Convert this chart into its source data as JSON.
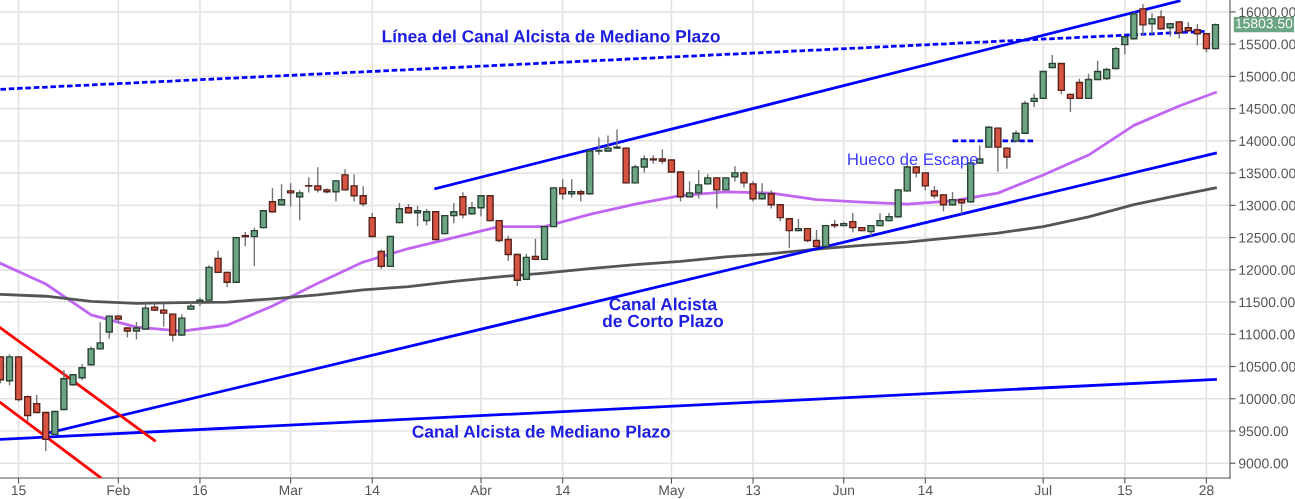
{
  "chart_data": {
    "type": "candlestick",
    "categories": [
      null,
      null,
      "15",
      null,
      null,
      null,
      null,
      null,
      null,
      null,
      null,
      null,
      null,
      "Feb",
      null,
      null,
      null,
      null,
      null,
      null,
      null,
      null,
      "16",
      null,
      null,
      null,
      null,
      null,
      null,
      null,
      null,
      null,
      "Mar",
      null,
      null,
      null,
      null,
      null,
      null,
      null,
      null,
      "14",
      null,
      null,
      null,
      null,
      null,
      null,
      null,
      null,
      null,
      null,
      null,
      "Abr",
      null,
      null,
      null,
      null,
      null,
      null,
      null,
      null,
      "14",
      null,
      null,
      null,
      null,
      null,
      null,
      null,
      null,
      null,
      null,
      null,
      "May",
      null,
      null,
      null,
      null,
      null,
      null,
      null,
      null,
      "13",
      null,
      null,
      null,
      null,
      null,
      null,
      null,
      null,
      null,
      "Jun",
      null,
      null,
      null,
      null,
      null,
      null,
      null,
      null,
      "14",
      null,
      null,
      null,
      null,
      null,
      null,
      null,
      null,
      null,
      null,
      null,
      null,
      "Jul",
      null,
      null,
      null,
      null,
      null,
      null,
      null,
      null,
      "15",
      null,
      null,
      null,
      null,
      null,
      null,
      null,
      null,
      "28",
      null
    ],
    "ohlc": [
      [
        10650,
        10650,
        10250,
        10295
      ],
      [
        10280,
        10680,
        10220,
        10650
      ],
      [
        10650,
        10650,
        9970,
        9987
      ],
      [
        10033,
        10040,
        9663,
        9740
      ],
      [
        9925,
        10050,
        9786,
        9786
      ],
      [
        9786,
        9786,
        9200,
        9370
      ],
      [
        9447,
        9802,
        9447,
        9802
      ],
      [
        9833,
        10434,
        9833,
        10311
      ],
      [
        10218,
        10372,
        10218,
        10372
      ],
      [
        10326,
        10530,
        10300,
        10480
      ],
      [
        10527,
        10800,
        10527,
        10773
      ],
      [
        10773,
        11174,
        10773,
        10866
      ],
      [
        11035,
        11282,
        10943,
        11282
      ],
      [
        11282,
        11282,
        11180,
        11236
      ],
      [
        11097,
        11097,
        10960,
        11051
      ],
      [
        11051,
        11180,
        10930,
        11097
      ],
      [
        11082,
        11470,
        11082,
        11406
      ],
      [
        11421,
        11470,
        11375,
        11375
      ],
      [
        11375,
        11470,
        11130,
        11328
      ],
      [
        11313,
        11313,
        10900,
        10989
      ],
      [
        10989,
        11300,
        10989,
        11251
      ],
      [
        11390,
        11500,
        11390,
        11436
      ],
      [
        11513,
        11560,
        11450,
        11529
      ],
      [
        11529,
        12060,
        11529,
        12038
      ],
      [
        12177,
        12285,
        11961,
        11961
      ],
      [
        11961,
        11961,
        11745,
        11806
      ],
      [
        11806,
        12500,
        11806,
        12500
      ],
      [
        12530,
        12577,
        12377,
        12515
      ],
      [
        12515,
        12639,
        12069,
        12608
      ],
      [
        12655,
        12917,
        12655,
        12917
      ],
      [
        13055,
        13256,
        12901,
        12901
      ],
      [
        13009,
        13318,
        13009,
        13086
      ],
      [
        13225,
        13333,
        12994,
        13194
      ],
      [
        13133,
        13225,
        12778,
        13194
      ],
      [
        13305,
        13426,
        13210,
        13300
      ],
      [
        13302,
        13580,
        13210,
        13240
      ],
      [
        13240,
        13255,
        13195,
        13210
      ],
      [
        13210,
        13379,
        13071,
        13379
      ],
      [
        13472,
        13549,
        13240,
        13240
      ],
      [
        13302,
        13472,
        13071,
        13148
      ],
      [
        13148,
        13287,
        12994,
        13025
      ],
      [
        12809,
        12870,
        12516,
        12516
      ],
      [
        12285,
        12300,
        12022,
        12053
      ],
      [
        12053,
        12516,
        12053,
        12516
      ],
      [
        12732,
        13025,
        12732,
        12948
      ],
      [
        12963,
        13009,
        12886,
        12886
      ],
      [
        12886,
        12978,
        12685,
        12917
      ],
      [
        12762,
        12932,
        12701,
        12901
      ],
      [
        12901,
        12901,
        12470,
        12470
      ],
      [
        12562,
        12840,
        12562,
        12840
      ],
      [
        12840,
        13025,
        12732,
        12901
      ],
      [
        13133,
        13194,
        12809,
        12855
      ],
      [
        12870,
        13040,
        12870,
        12963
      ],
      [
        12963,
        13148,
        12840,
        13148
      ],
      [
        13148,
        13148,
        12762,
        12762
      ],
      [
        12762,
        12762,
        12440,
        12454
      ],
      [
        12470,
        12516,
        12146,
        12238
      ],
      [
        12238,
        12238,
        11760,
        11837
      ],
      [
        11853,
        12238,
        11853,
        12192
      ],
      [
        12207,
        12470,
        12161,
        12161
      ],
      [
        12161,
        12670,
        12161,
        12670
      ],
      [
        12670,
        13271,
        12670,
        13271
      ],
      [
        13271,
        13395,
        13102,
        13179
      ],
      [
        13179,
        13395,
        13133,
        13210
      ],
      [
        13210,
        13230,
        13071,
        13179
      ],
      [
        13179,
        13860,
        13179,
        13842
      ],
      [
        13842,
        14042,
        13796,
        13850
      ],
      [
        13842,
        14073,
        13842,
        13888
      ],
      [
        13888,
        14166,
        13888,
        13903
      ],
      [
        13888,
        13888,
        13348,
        13348
      ],
      [
        13348,
        13620,
        13348,
        13595
      ],
      [
        13595,
        13765,
        13518,
        13719
      ],
      [
        13719,
        13765,
        13657,
        13705
      ],
      [
        13719,
        13857,
        13657,
        13688
      ],
      [
        13703,
        13703,
        13518,
        13518
      ],
      [
        13518,
        13518,
        13071,
        13133
      ],
      [
        13133,
        13364,
        13133,
        13194
      ],
      [
        13194,
        13533,
        13117,
        13318
      ],
      [
        13333,
        13472,
        13333,
        13426
      ],
      [
        13426,
        13426,
        12963,
        13240
      ],
      [
        13240,
        13426,
        13240,
        13426
      ],
      [
        13441,
        13595,
        13379,
        13503
      ],
      [
        13503,
        13518,
        13287,
        13348
      ],
      [
        13333,
        13364,
        13071,
        13102
      ],
      [
        13102,
        13333,
        13102,
        13179
      ],
      [
        13179,
        13225,
        12963,
        13009
      ],
      [
        13009,
        13009,
        12762,
        12809
      ],
      [
        12793,
        12793,
        12346,
        12608
      ],
      [
        12608,
        12778,
        12608,
        12639
      ],
      [
        12639,
        12639,
        12439,
        12454
      ],
      [
        12454,
        12608,
        12362,
        12362
      ],
      [
        12362,
        12685,
        12362,
        12685
      ],
      [
        12701,
        12762,
        12655,
        12685
      ],
      [
        12685,
        12730,
        12685,
        12716
      ],
      [
        12747,
        12870,
        12593,
        12655
      ],
      [
        12655,
        12655,
        12608,
        12608
      ],
      [
        12593,
        12685,
        12531,
        12685
      ],
      [
        12685,
        12870,
        12685,
        12762
      ],
      [
        12762,
        12870,
        12762,
        12824
      ],
      [
        12824,
        13240,
        12824,
        13240
      ],
      [
        13225,
        13626,
        13225,
        13595
      ],
      [
        13595,
        13595,
        13441,
        13503
      ],
      [
        13503,
        13503,
        13240,
        13302
      ],
      [
        13225,
        13287,
        13117,
        13148
      ],
      [
        13163,
        13163,
        12917,
        13009
      ],
      [
        13009,
        13194,
        13009,
        13086
      ],
      [
        13086,
        13086,
        12870,
        13040
      ],
      [
        13055,
        13657,
        13055,
        13657
      ],
      [
        13657,
        13919,
        13657,
        13719
      ],
      [
        13903,
        14212,
        13903,
        14212
      ],
      [
        14197,
        14197,
        13533,
        13903
      ],
      [
        13888,
        13888,
        13580,
        13749
      ],
      [
        13996,
        14150,
        13996,
        14119
      ],
      [
        14119,
        14613,
        14119,
        14582
      ],
      [
        14613,
        14721,
        14536,
        14659
      ],
      [
        14659,
        15075,
        14659,
        15075
      ],
      [
        15137,
        15322,
        15137,
        15199
      ],
      [
        15199,
        15199,
        14736,
        14783
      ],
      [
        14721,
        14721,
        14459,
        14659
      ],
      [
        14906,
        14952,
        14659,
        14659
      ],
      [
        14659,
        15029,
        14659,
        14952
      ],
      [
        14952,
        15230,
        14952,
        15075
      ],
      [
        14968,
        15120,
        14952,
        15106
      ],
      [
        15122,
        15445,
        15122,
        15430
      ],
      [
        15492,
        15615,
        15353,
        15615
      ],
      [
        15584,
        15985,
        15584,
        15970
      ],
      [
        16047,
        16109,
        15646,
        15800
      ],
      [
        15816,
        15970,
        15661,
        15893
      ],
      [
        15923,
        16016,
        15739,
        15739
      ],
      [
        15754,
        15816,
        15631,
        15816
      ],
      [
        15846,
        15846,
        15600,
        15677
      ],
      [
        15754,
        15831,
        15708,
        15708
      ],
      [
        15723,
        15800,
        15492,
        15661
      ],
      [
        15661,
        15661,
        15384,
        15430
      ],
      [
        15430,
        15810,
        15430,
        15803.5
      ]
    ],
    "colors": [
      "#d75442",
      "#6ba583",
      "#d75442",
      "#d75442",
      "#d75442",
      "#d75442",
      "#6ba583",
      "#6ba583",
      "#6ba583",
      "#6ba583",
      "#6ba583",
      "#6ba583",
      "#6ba583",
      "#d75442",
      "#d75442",
      "#6ba583",
      "#6ba583",
      "#d75442",
      "#d75442",
      "#d75442",
      "#6ba583",
      "#6ba583",
      "#6ba583",
      "#6ba583",
      "#d75442",
      "#d75442",
      "#6ba583",
      "#d75442",
      "#6ba583",
      "#6ba583",
      "#d75442",
      "#6ba583",
      "#d75442",
      "#6ba583",
      "#d75442",
      "#d75442",
      "#d75442",
      "#6ba583",
      "#d75442",
      "#d75442",
      "#d75442",
      "#d75442",
      "#d75442",
      "#6ba583",
      "#6ba583",
      "#d75442",
      "#6ba583",
      "#6ba583",
      "#d75442",
      "#6ba583",
      "#6ba583",
      "#d75442",
      "#6ba583",
      "#6ba583",
      "#d75442",
      "#d75442",
      "#d75442",
      "#d75442",
      "#6ba583",
      "#d75442",
      "#6ba583",
      "#6ba583",
      "#d75442",
      "#6ba583",
      "#d75442",
      "#6ba583",
      "#6ba583",
      "#6ba583",
      "#6ba583",
      "#d75442",
      "#6ba583",
      "#6ba583",
      "#d75442",
      "#d75442",
      "#d75442",
      "#d75442",
      "#6ba583",
      "#6ba583",
      "#6ba583",
      "#d75442",
      "#6ba583",
      "#6ba583",
      "#d75442",
      "#d75442",
      "#6ba583",
      "#d75442",
      "#d75442",
      "#d75442",
      "#6ba583",
      "#d75442",
      "#d75442",
      "#6ba583",
      "#d75442",
      "#6ba583",
      "#d75442",
      "#d75442",
      "#6ba583",
      "#6ba583",
      "#6ba583",
      "#6ba583",
      "#6ba583",
      "#d75442",
      "#d75442",
      "#d75442",
      "#d75442",
      "#6ba583",
      "#d75442",
      "#6ba583",
      "#6ba583",
      "#6ba583",
      "#d75442",
      "#d75442",
      "#6ba583",
      "#6ba583",
      "#6ba583",
      "#6ba583",
      "#6ba583",
      "#d75442",
      "#d75442",
      "#d75442",
      "#6ba583",
      "#6ba583",
      "#6ba583",
      "#6ba583",
      "#6ba583",
      "#6ba583",
      "#d75442",
      "#6ba583",
      "#d75442",
      "#6ba583",
      "#d75442",
      "#d75442",
      "#d75442",
      "#d75442",
      "#6ba583"
    ],
    "series": [
      {
        "type": "line",
        "color": "#c066f2",
        "line_style": "solid",
        "values": [
          12100,
          null,
          null,
          null,
          null,
          11780,
          null,
          null,
          null,
          null,
          11300,
          null,
          null,
          null,
          null,
          11110,
          null,
          null,
          null,
          null,
          11050,
          null,
          null,
          null,
          null,
          11140,
          null,
          null,
          null,
          null,
          11440,
          null,
          null,
          null,
          null,
          11790,
          null,
          null,
          null,
          null,
          12120,
          null,
          null,
          null,
          null,
          12330,
          null,
          null,
          null,
          null,
          12500,
          null,
          null,
          null,
          null,
          12670,
          null,
          null,
          null,
          null,
          12670,
          null,
          null,
          null,
          null,
          12860,
          null,
          null,
          null,
          null,
          13020,
          null,
          null,
          null,
          null,
          13150,
          null,
          null,
          null,
          null,
          13210,
          null,
          null,
          null,
          null,
          13190,
          null,
          null,
          null,
          null,
          13090,
          null,
          null,
          null,
          null,
          13050,
          null,
          null,
          null,
          null,
          13020,
          null,
          null,
          null,
          null,
          13070,
          null,
          null,
          null,
          null,
          13190,
          null,
          null,
          null,
          null,
          13470,
          null,
          null,
          null,
          null,
          13780,
          null,
          null,
          null,
          null,
          14240,
          null,
          null,
          null,
          null,
          14540,
          null,
          null,
          null,
          14750
        ]
      },
      {
        "type": "line",
        "color": "#555555",
        "line_style": "solid",
        "values": [
          11620,
          null,
          null,
          null,
          null,
          11590,
          null,
          null,
          null,
          null,
          11510,
          null,
          null,
          null,
          null,
          11480,
          null,
          null,
          null,
          null,
          11490,
          null,
          null,
          null,
          null,
          11500,
          null,
          null,
          null,
          null,
          11550,
          null,
          null,
          null,
          null,
          11610,
          null,
          null,
          null,
          null,
          11690,
          null,
          null,
          null,
          null,
          11740,
          null,
          null,
          null,
          null,
          11820,
          null,
          null,
          null,
          null,
          11890,
          null,
          null,
          null,
          null,
          11950,
          null,
          null,
          null,
          null,
          12020,
          null,
          null,
          null,
          null,
          12080,
          null,
          null,
          null,
          null,
          12130,
          null,
          null,
          null,
          null,
          12200,
          null,
          null,
          null,
          null,
          12250,
          null,
          null,
          null,
          null,
          12320,
          null,
          null,
          null,
          null,
          12380,
          null,
          null,
          null,
          null,
          12430,
          null,
          null,
          null,
          null,
          12500,
          null,
          null,
          null,
          null,
          12570,
          null,
          null,
          null,
          null,
          12670,
          null,
          null,
          null,
          null,
          12820,
          null,
          null,
          null,
          null,
          13010,
          null,
          null,
          null,
          null,
          13160,
          null,
          null,
          null,
          13270
        ]
      },
      {
        "type": "line",
        "color": "#0000ff",
        "line_style": "dashed",
        "values": [
          14800,
          null,
          null,
          null,
          null,
          null,
          null,
          null,
          null,
          null,
          null,
          null,
          null,
          null,
          null,
          null,
          null,
          null,
          null,
          null,
          null,
          null,
          null,
          null,
          null,
          null,
          null,
          null,
          null,
          null,
          null,
          null,
          null,
          null,
          null,
          null,
          null,
          null,
          null,
          null,
          null,
          null,
          null,
          null,
          null,
          null,
          null,
          null,
          null,
          null,
          null,
          null,
          null,
          null,
          null,
          null,
          null,
          null,
          null,
          null,
          null,
          null,
          null,
          null,
          null,
          null,
          null,
          null,
          null,
          null,
          null,
          null,
          null,
          null,
          null,
          null,
          null,
          null,
          null,
          null,
          null,
          null,
          null,
          null,
          null,
          null,
          null,
          null,
          null,
          null,
          null,
          null,
          null,
          null,
          null,
          null,
          null,
          null,
          null,
          null,
          null,
          null,
          null,
          null,
          null,
          null,
          null,
          null,
          null,
          null,
          null,
          null,
          null,
          null,
          null,
          null,
          null,
          null,
          null,
          null,
          null,
          null,
          null,
          null,
          null,
          null,
          null,
          null,
          null,
          null,
          null,
          null,
          null,
          15700,
          null
        ]
      },
      {
        "type": "line",
        "color": "#0000ff",
        "line_style": "solid",
        "values": [
          null,
          null,
          null,
          null,
          null,
          9460,
          null,
          null,
          null,
          null,
          null,
          null,
          null,
          null,
          null,
          null,
          null,
          null,
          null,
          null,
          null,
          null,
          null,
          null,
          null,
          null,
          null,
          null,
          null,
          null,
          null,
          null,
          null,
          null,
          null,
          null,
          null,
          null,
          null,
          null,
          null,
          null,
          null,
          null,
          null,
          null,
          null,
          null,
          null,
          null,
          null,
          null,
          null,
          null,
          null,
          null,
          null,
          null,
          null,
          null,
          null,
          null,
          null,
          null,
          null,
          null,
          null,
          null,
          null,
          null,
          null,
          null,
          null,
          null,
          null,
          null,
          null,
          null,
          null,
          null,
          null,
          null,
          null,
          null,
          null,
          null,
          null,
          null,
          null,
          null,
          null,
          null,
          null,
          null,
          null,
          null,
          null,
          null,
          null,
          null,
          null,
          null,
          null,
          null,
          null,
          null,
          null,
          null,
          null,
          null,
          null,
          null,
          null,
          null,
          null,
          null,
          null,
          null,
          null,
          null,
          null,
          null,
          null,
          null,
          null,
          null,
          null,
          null,
          null,
          null,
          null,
          null,
          null,
          null,
          13810
        ]
      },
      {
        "type": "line",
        "color": "#0000ff",
        "line_style": "solid",
        "values": [
          null,
          null,
          null,
          null,
          null,
          null,
          null,
          null,
          null,
          null,
          null,
          null,
          null,
          null,
          null,
          null,
          null,
          null,
          null,
          null,
          null,
          null,
          null,
          null,
          null,
          null,
          null,
          null,
          null,
          null,
          null,
          null,
          null,
          null,
          null,
          null,
          null,
          null,
          null,
          null,
          null,
          null,
          null,
          null,
          null,
          null,
          null,
          null,
          13260,
          null,
          null,
          null,
          null,
          null,
          null,
          null,
          null,
          null,
          null,
          null,
          null,
          null,
          null,
          null,
          null,
          null,
          null,
          null,
          null,
          null,
          null,
          null,
          null,
          null,
          null,
          null,
          null,
          null,
          null,
          null,
          null,
          null,
          null,
          null,
          null,
          null,
          null,
          null,
          null,
          null,
          null,
          null,
          null,
          null,
          null,
          null,
          null,
          null,
          null,
          null,
          null,
          null,
          null,
          null,
          null,
          null,
          null,
          null,
          null,
          null,
          null,
          null,
          null,
          null,
          null,
          null,
          null,
          null,
          null,
          null,
          null,
          null,
          null,
          null,
          null,
          null,
          null,
          null,
          null,
          null,
          16170,
          null,
          null,
          null,
          null
        ]
      },
      {
        "type": "line",
        "color": "#0000ff",
        "line_style": "solid",
        "values": [
          9370,
          null,
          null,
          null,
          null,
          null,
          null,
          null,
          null,
          null,
          null,
          null,
          null,
          null,
          null,
          null,
          null,
          null,
          null,
          null,
          null,
          null,
          null,
          null,
          null,
          null,
          null,
          null,
          null,
          null,
          null,
          null,
          null,
          null,
          null,
          null,
          null,
          null,
          null,
          null,
          null,
          null,
          null,
          null,
          null,
          null,
          null,
          null,
          null,
          null,
          null,
          null,
          null,
          null,
          null,
          null,
          null,
          null,
          null,
          null,
          null,
          null,
          null,
          null,
          null,
          null,
          null,
          null,
          null,
          null,
          null,
          null,
          null,
          null,
          null,
          null,
          null,
          null,
          null,
          null,
          null,
          null,
          null,
          null,
          null,
          null,
          null,
          null,
          null,
          null,
          null,
          null,
          null,
          null,
          null,
          null,
          null,
          null,
          null,
          null,
          null,
          null,
          null,
          null,
          null,
          null,
          null,
          null,
          null,
          null,
          null,
          null,
          null,
          null,
          null,
          null,
          null,
          null,
          null,
          null,
          null,
          null,
          null,
          null,
          null,
          null,
          null,
          null,
          null,
          null,
          null,
          null,
          null,
          null,
          10300
        ]
      },
      {
        "type": "line",
        "color": "#ff0000",
        "line_style": "solid",
        "values": [
          11100,
          null,
          null,
          null,
          null,
          null,
          null,
          null,
          null,
          null,
          null,
          null,
          null,
          null,
          null,
          null,
          null,
          9350,
          null,
          null,
          null,
          null,
          null,
          null,
          null,
          null,
          null,
          null,
          null,
          null,
          null,
          null,
          null,
          null,
          null,
          null,
          null,
          null,
          null,
          null,
          null,
          null,
          null,
          null,
          null,
          null,
          null,
          null,
          null,
          null,
          null,
          null,
          null,
          null,
          null,
          null,
          null,
          null,
          null,
          null,
          null,
          null,
          null,
          null,
          null,
          null,
          null,
          null,
          null,
          null,
          null,
          null,
          null,
          null,
          null,
          null,
          null,
          null,
          null,
          null,
          null,
          null,
          null,
          null,
          null,
          null,
          null,
          null,
          null,
          null,
          null,
          null,
          null,
          null,
          null,
          null,
          null,
          null,
          null,
          null,
          null,
          null,
          null,
          null,
          null,
          null,
          null,
          null,
          null,
          null,
          null,
          null,
          null,
          null,
          null,
          null,
          null,
          null,
          null,
          null,
          null,
          null,
          null,
          null,
          null,
          null,
          null,
          null,
          null,
          null,
          null,
          null,
          null,
          null,
          null
        ]
      },
      {
        "type": "line",
        "color": "#ff0000",
        "line_style": "solid",
        "values": [
          9940,
          null,
          null,
          null,
          null,
          null,
          null,
          null,
          null,
          null,
          null,
          8780,
          null,
          null,
          null,
          null,
          null,
          null,
          null,
          null,
          null,
          null,
          null,
          null,
          null,
          null,
          null,
          null,
          null,
          null,
          null,
          null,
          null,
          null,
          null,
          null,
          null,
          null,
          null,
          null,
          null,
          null,
          null,
          null,
          null,
          null,
          null,
          null,
          null,
          null,
          null,
          null,
          null,
          null,
          null,
          null,
          null,
          null,
          null,
          null,
          null,
          null,
          null,
          null,
          null,
          null,
          null,
          null,
          null,
          null,
          null,
          null,
          null,
          null,
          null,
          null,
          null,
          null,
          null,
          null,
          null,
          null,
          null,
          null,
          null,
          null,
          null,
          null,
          null,
          null,
          null,
          null,
          null,
          null,
          null,
          null,
          null,
          null,
          null,
          null,
          null,
          null,
          null,
          null,
          null,
          null,
          null,
          null,
          null,
          null,
          null,
          null,
          null,
          null,
          null,
          null,
          null,
          null,
          null,
          null,
          null,
          null,
          null,
          null,
          null,
          null,
          null,
          null,
          null,
          null,
          null,
          null,
          null,
          null,
          null
        ]
      },
      {
        "type": "line",
        "color": "#0000ff",
        "line_style": "dashed",
        "values": [
          null,
          null,
          null,
          null,
          null,
          null,
          null,
          null,
          null,
          null,
          null,
          null,
          null,
          null,
          null,
          null,
          null,
          null,
          null,
          null,
          null,
          null,
          null,
          null,
          null,
          null,
          null,
          null,
          null,
          null,
          null,
          null,
          null,
          null,
          null,
          null,
          null,
          null,
          null,
          null,
          null,
          null,
          null,
          null,
          null,
          null,
          null,
          null,
          null,
          null,
          null,
          null,
          null,
          null,
          null,
          null,
          null,
          null,
          null,
          null,
          null,
          null,
          null,
          null,
          null,
          null,
          null,
          null,
          null,
          null,
          null,
          null,
          null,
          null,
          null,
          null,
          null,
          null,
          null,
          null,
          null,
          null,
          null,
          null,
          null,
          null,
          null,
          null,
          null,
          null,
          null,
          null,
          null,
          null,
          null,
          null,
          null,
          null,
          null,
          null,
          null,
          null,
          null,
          null,
          null,
          14000,
          null,
          null,
          null,
          null,
          null,
          null,
          null,
          null,
          14000,
          null,
          null,
          null,
          null,
          null,
          null,
          null,
          null,
          null,
          null,
          null,
          null,
          null,
          null,
          null,
          null,
          null,
          null,
          null,
          null
        ]
      }
    ],
    "ylim": [
      8770,
      16185
    ],
    "yticks": [
      {
        "value": 9000,
        "label": "9000.00"
      },
      {
        "value": 9500,
        "label": "9500.00"
      },
      {
        "value": 10000,
        "label": "10000.00"
      },
      {
        "value": 10500,
        "label": "10500.00"
      },
      {
        "value": 11000,
        "label": "11000.00"
      },
      {
        "value": 11500,
        "label": "11500.00"
      },
      {
        "value": 12000,
        "label": "12000.00"
      },
      {
        "value": 12500,
        "label": "12500.00"
      },
      {
        "value": 13000,
        "label": "13000.00"
      },
      {
        "value": 13500,
        "label": "13500.00"
      },
      {
        "value": 14000,
        "label": "14000.00"
      },
      {
        "value": 14500,
        "label": "14500.00"
      },
      {
        "value": 15000,
        "label": "15000.00"
      },
      {
        "value": 15500,
        "label": "15500.00"
      },
      {
        "value": 16000,
        "label": "16000.00"
      }
    ],
    "grid": true,
    "annotations": [
      "Línea del Canal Alcista de Mediano Plazo",
      "Hueco de Escape",
      "Canal Alcista\nde Corto Plazo",
      "Canal Alcista de Mediano Plazo",
      "15803.50"
    ]
  }
}
